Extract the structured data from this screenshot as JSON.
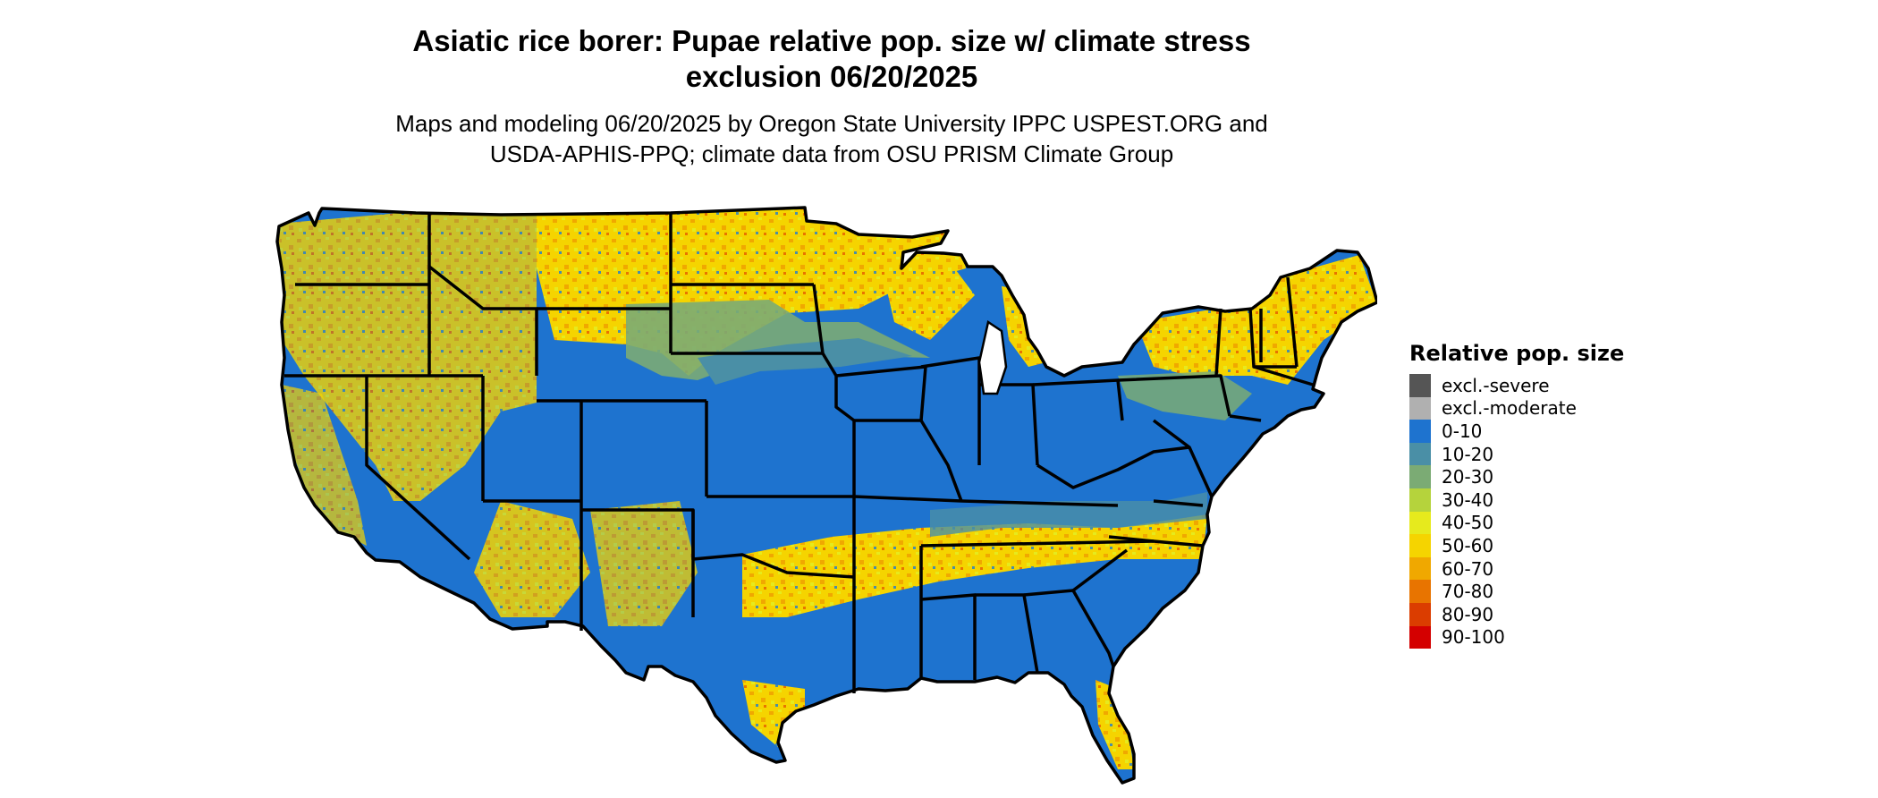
{
  "title_lines": [
    "Asiatic rice borer: Pupae relative pop. size w/ climate stress",
    "exclusion 06/20/2025"
  ],
  "subtitle_lines": [
    "Maps and modeling 06/20/2025 by Oregon State University IPPC USPEST.ORG and",
    "USDA-APHIS-PPQ; climate data from OSU PRISM Climate Group"
  ],
  "legend": {
    "title": "Relative pop. size",
    "items": [
      {
        "label": "excl.-severe",
        "color": "#555555"
      },
      {
        "label": "excl.-moderate",
        "color": "#b0b0b0"
      },
      {
        "label": "0-10",
        "color": "#1e73cf"
      },
      {
        "label": "10-20",
        "color": "#4a8fa6"
      },
      {
        "label": "20-30",
        "color": "#7bab74"
      },
      {
        "label": "30-40",
        "color": "#b5d33c"
      },
      {
        "label": "40-50",
        "color": "#e6ea1d"
      },
      {
        "label": "50-60",
        "color": "#f5d400"
      },
      {
        "label": "60-70",
        "color": "#f0a800"
      },
      {
        "label": "70-80",
        "color": "#e87400"
      },
      {
        "label": "80-90",
        "color": "#db3d00"
      },
      {
        "label": "90-100",
        "color": "#d40000"
      }
    ]
  }
}
